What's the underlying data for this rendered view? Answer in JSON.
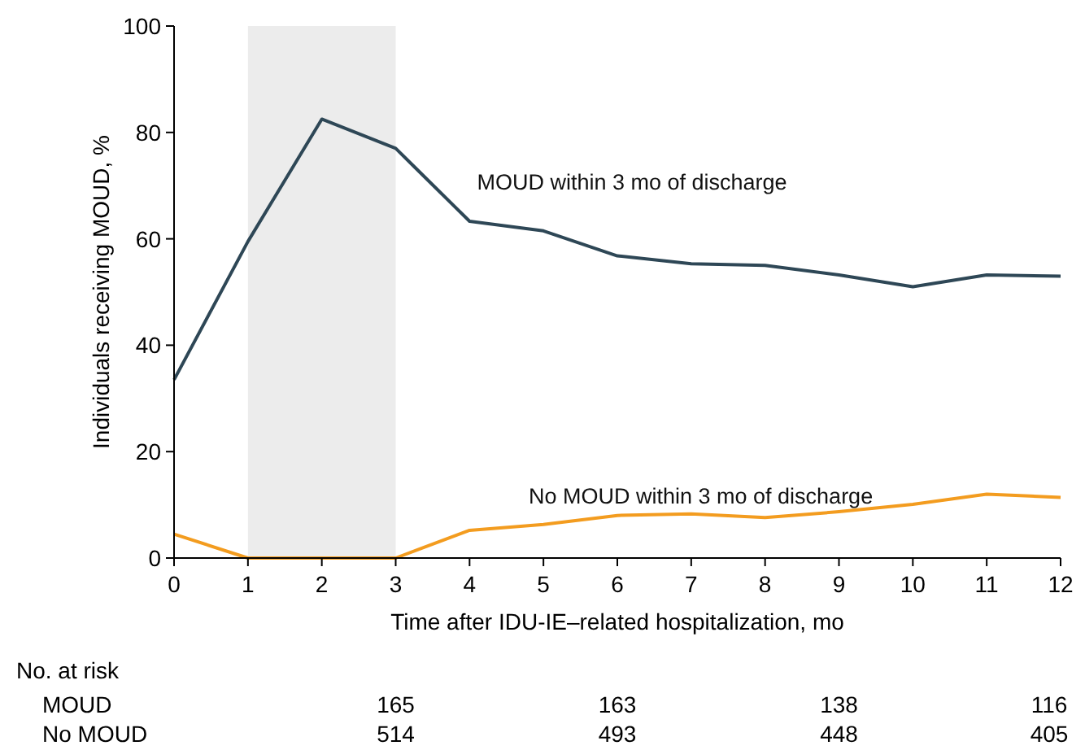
{
  "chart_data": {
    "type": "line",
    "xlabel": "Time after IDU-IE–related hospitalization, mo",
    "ylabel": "Individuals receiving MOUD, %",
    "x": [
      0,
      1,
      2,
      3,
      4,
      5,
      6,
      7,
      8,
      9,
      10,
      11,
      12
    ],
    "series": [
      {
        "name": "MOUD within 3 mo of discharge",
        "color": "#2e4756",
        "values": [
          33.5,
          59.5,
          82.5,
          77,
          63.3,
          61.5,
          56.8,
          55.3,
          55,
          53.2,
          51,
          53.2,
          53
        ]
      },
      {
        "name": "No MOUD within 3 mo of discharge",
        "color": "#f39c1f",
        "values": [
          4.5,
          0,
          0,
          0,
          5.2,
          6.3,
          8,
          8.3,
          7.6,
          8.7,
          10.1,
          12,
          11.4
        ]
      }
    ],
    "xlim": [
      0,
      12
    ],
    "xticks": [
      0,
      1,
      2,
      3,
      4,
      5,
      6,
      7,
      8,
      9,
      10,
      11,
      12
    ],
    "ylim": [
      0,
      100
    ],
    "yticks": [
      0,
      20,
      40,
      60,
      80,
      100
    ],
    "bands": [
      {
        "axis": "x",
        "from": 1,
        "to": 3,
        "color": "#ececec"
      }
    ],
    "annotations": [
      "No. at risk",
      "MOUD",
      "165",
      "163",
      "138",
      "116",
      "No MOUD",
      "514",
      "493",
      "448",
      "405"
    ],
    "grid": false,
    "marker": "none",
    "line_style": "solid"
  }
}
